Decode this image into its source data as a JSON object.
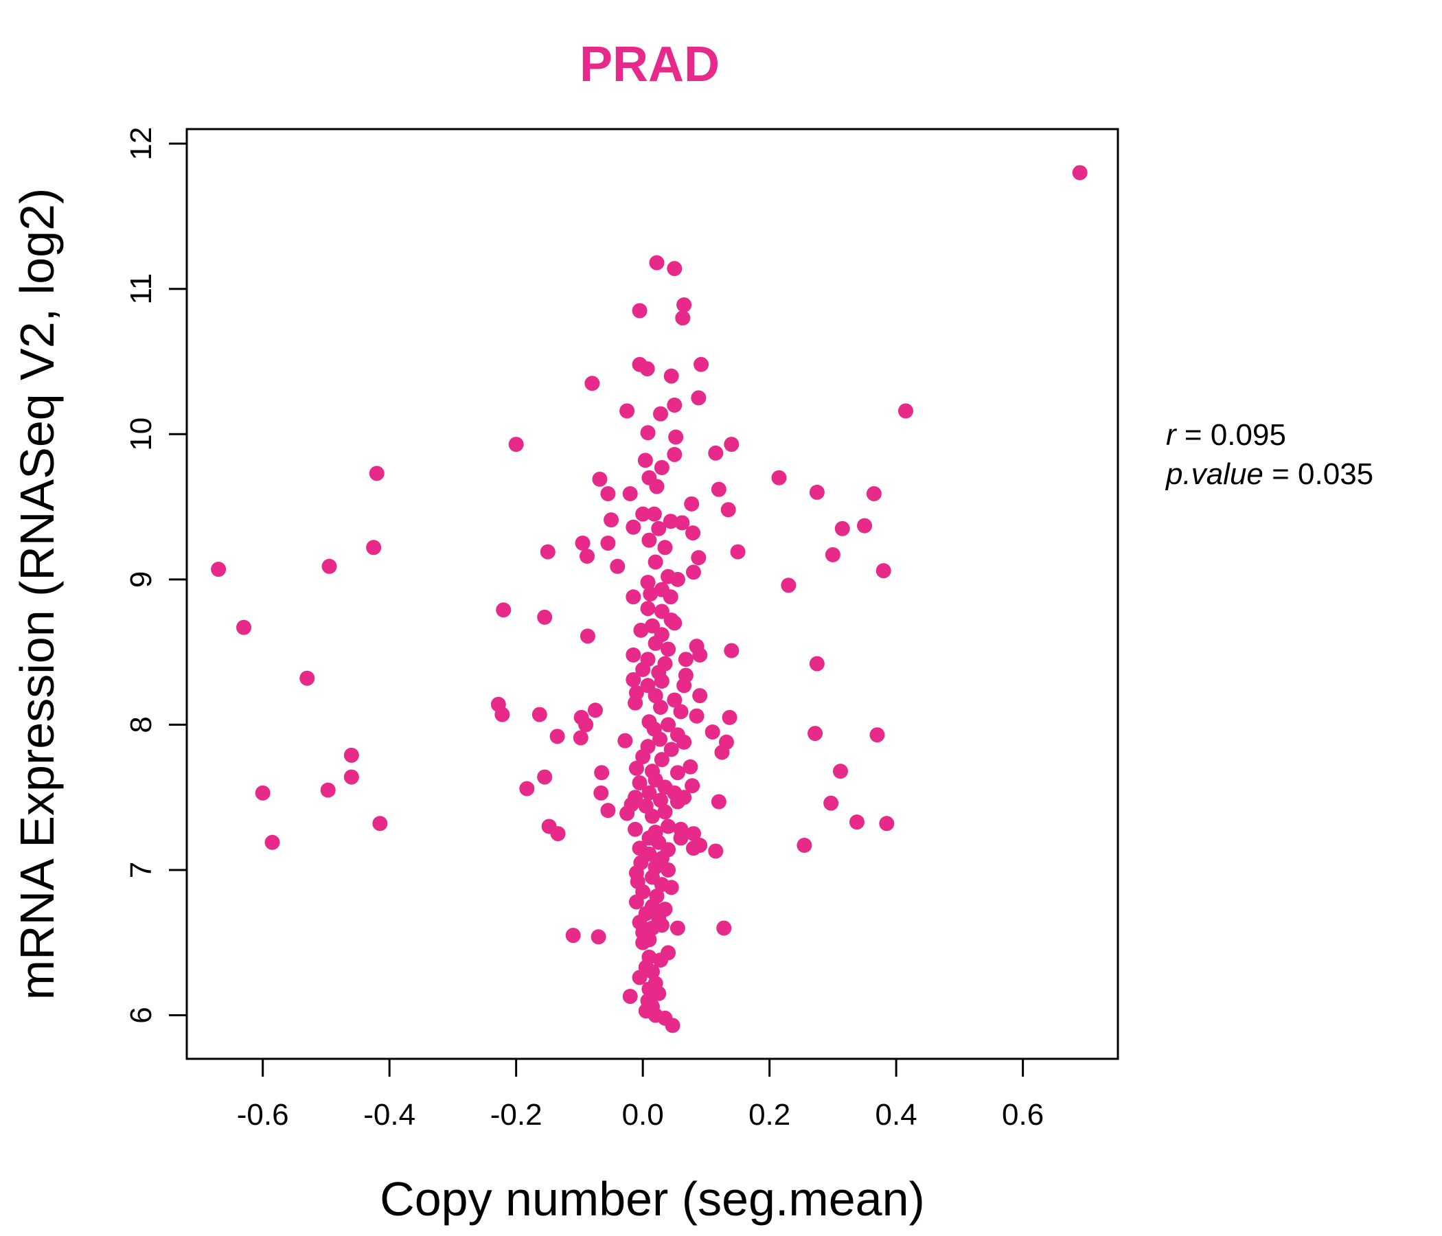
{
  "chart_data": {
    "type": "scatter",
    "title": "PRAD",
    "xlabel": "Copy number (seg.mean)",
    "ylabel": "mRNA Expression (RNASeq V2, log2)",
    "xlim": [
      -0.72,
      0.75
    ],
    "ylim": [
      5.7,
      12.1
    ],
    "x_ticks": [
      -0.6,
      -0.4,
      -0.2,
      0.0,
      0.2,
      0.4,
      0.6
    ],
    "x_tick_labels": [
      "-0.6",
      "-0.4",
      "-0.2",
      "0.0",
      "0.2",
      "0.4",
      "0.6"
    ],
    "y_ticks": [
      6,
      7,
      8,
      9,
      10,
      11,
      12
    ],
    "y_tick_labels": [
      "6",
      "7",
      "8",
      "9",
      "10",
      "11",
      "12"
    ],
    "grid": false,
    "legend": "none",
    "stats": {
      "r_label": "r",
      "r_value": "0.095",
      "p_label": "p.value",
      "p_value": "0.035"
    },
    "colors": {
      "point": "#e7298a",
      "title": "#e7298a",
      "axis": "#000000"
    },
    "points": [
      [
        0.69,
        11.8
      ],
      [
        0.022,
        11.18
      ],
      [
        0.05,
        11.14
      ],
      [
        -0.005,
        10.85
      ],
      [
        0.065,
        10.89
      ],
      [
        0.063,
        10.8
      ],
      [
        -0.005,
        10.48
      ],
      [
        0.007,
        10.45
      ],
      [
        0.092,
        10.48
      ],
      [
        -0.08,
        10.35
      ],
      [
        0.045,
        10.4
      ],
      [
        -0.025,
        10.16
      ],
      [
        0.028,
        10.14
      ],
      [
        0.05,
        10.2
      ],
      [
        0.088,
        10.25
      ],
      [
        0.415,
        10.16
      ],
      [
        0.008,
        10.01
      ],
      [
        0.052,
        9.98
      ],
      [
        -0.2,
        9.93
      ],
      [
        0.14,
        9.93
      ],
      [
        0.115,
        9.87
      ],
      [
        0.05,
        9.86
      ],
      [
        0.004,
        9.82
      ],
      [
        0.03,
        9.77
      ],
      [
        -0.42,
        9.73
      ],
      [
        0.215,
        9.7
      ],
      [
        -0.068,
        9.69
      ],
      [
        0.01,
        9.7
      ],
      [
        0.022,
        9.64
      ],
      [
        0.12,
        9.62
      ],
      [
        -0.055,
        9.59
      ],
      [
        -0.02,
        9.59
      ],
      [
        0.275,
        9.6
      ],
      [
        0.365,
        9.59
      ],
      [
        0.077,
        9.52
      ],
      [
        0.135,
        9.48
      ],
      [
        0.0,
        9.45
      ],
      [
        0.018,
        9.45
      ],
      [
        -0.05,
        9.41
      ],
      [
        0.044,
        9.4
      ],
      [
        0.062,
        9.39
      ],
      [
        -0.015,
        9.36
      ],
      [
        0.025,
        9.35
      ],
      [
        0.315,
        9.35
      ],
      [
        0.35,
        9.37
      ],
      [
        0.079,
        9.32
      ],
      [
        -0.095,
        9.25
      ],
      [
        -0.055,
        9.25
      ],
      [
        0.01,
        9.27
      ],
      [
        0.035,
        9.22
      ],
      [
        -0.425,
        9.22
      ],
      [
        -0.15,
        9.19
      ],
      [
        0.15,
        9.19
      ],
      [
        0.3,
        9.17
      ],
      [
        -0.088,
        9.16
      ],
      [
        0.088,
        9.15
      ],
      [
        0.02,
        9.12
      ],
      [
        -0.495,
        9.09
      ],
      [
        -0.04,
        9.09
      ],
      [
        -0.67,
        9.07
      ],
      [
        0.38,
        9.06
      ],
      [
        0.08,
        9.05
      ],
      [
        0.04,
        9.02
      ],
      [
        0.055,
        9.0
      ],
      [
        0.008,
        8.98
      ],
      [
        0.23,
        8.96
      ],
      [
        0.03,
        8.93
      ],
      [
        -0.015,
        8.88
      ],
      [
        0.012,
        8.9
      ],
      [
        0.044,
        8.88
      ],
      [
        -0.22,
        8.79
      ],
      [
        0.008,
        8.8
      ],
      [
        0.03,
        8.78
      ],
      [
        -0.155,
        8.74
      ],
      [
        0.045,
        8.72
      ],
      [
        -0.63,
        8.67
      ],
      [
        0.015,
        8.68
      ],
      [
        0.05,
        8.7
      ],
      [
        -0.003,
        8.65
      ],
      [
        -0.087,
        8.61
      ],
      [
        0.03,
        8.62
      ],
      [
        0.02,
        8.56
      ],
      [
        0.085,
        8.54
      ],
      [
        0.04,
        8.52
      ],
      [
        0.14,
        8.51
      ],
      [
        -0.015,
        8.48
      ],
      [
        0.09,
        8.48
      ],
      [
        0.008,
        8.45
      ],
      [
        0.068,
        8.45
      ],
      [
        0.035,
        8.42
      ],
      [
        0.275,
        8.42
      ],
      [
        0.0,
        8.38
      ],
      [
        0.025,
        8.36
      ],
      [
        -0.015,
        8.31
      ],
      [
        0.068,
        8.34
      ],
      [
        -0.53,
        8.32
      ],
      [
        0.03,
        8.3
      ],
      [
        0.008,
        8.27
      ],
      [
        0.065,
        8.27
      ],
      [
        -0.01,
        8.22
      ],
      [
        0.02,
        8.2
      ],
      [
        0.09,
        8.2
      ],
      [
        -0.228,
        8.14
      ],
      [
        0.05,
        8.17
      ],
      [
        -0.012,
        8.15
      ],
      [
        0.028,
        8.12
      ],
      [
        -0.075,
        8.1
      ],
      [
        0.06,
        8.09
      ],
      [
        -0.222,
        8.07
      ],
      [
        -0.163,
        8.07
      ],
      [
        0.085,
        8.06
      ],
      [
        -0.097,
        8.05
      ],
      [
        0.137,
        8.05
      ],
      [
        0.01,
        8.02
      ],
      [
        0.04,
        8.0
      ],
      [
        -0.09,
        8.0
      ],
      [
        0.018,
        7.97
      ],
      [
        0.11,
        7.95
      ],
      [
        0.055,
        7.93
      ],
      [
        0.272,
        7.94
      ],
      [
        0.37,
        7.93
      ],
      [
        -0.135,
        7.92
      ],
      [
        -0.098,
        7.91
      ],
      [
        0.027,
        7.9
      ],
      [
        -0.028,
        7.89
      ],
      [
        0.065,
        7.88
      ],
      [
        0.132,
        7.88
      ],
      [
        0.008,
        7.85
      ],
      [
        0.045,
        7.83
      ],
      [
        0.125,
        7.81
      ],
      [
        -0.46,
        7.79
      ],
      [
        0.0,
        7.78
      ],
      [
        0.03,
        7.76
      ],
      [
        0.075,
        7.71
      ],
      [
        -0.01,
        7.7
      ],
      [
        0.015,
        7.68
      ],
      [
        0.312,
        7.68
      ],
      [
        -0.065,
        7.67
      ],
      [
        0.055,
        7.67
      ],
      [
        -0.155,
        7.64
      ],
      [
        -0.46,
        7.64
      ],
      [
        0.02,
        7.62
      ],
      [
        -0.005,
        7.6
      ],
      [
        0.078,
        7.58
      ],
      [
        0.035,
        7.57
      ],
      [
        -0.183,
        7.56
      ],
      [
        -0.497,
        7.55
      ],
      [
        0.01,
        7.53
      ],
      [
        0.05,
        7.53
      ],
      [
        -0.066,
        7.53
      ],
      [
        -0.6,
        7.53
      ],
      [
        -0.012,
        7.5
      ],
      [
        0.065,
        7.5
      ],
      [
        0.028,
        7.48
      ],
      [
        0.12,
        7.47
      ],
      [
        0.055,
        7.47
      ],
      [
        -0.018,
        7.45
      ],
      [
        0.297,
        7.46
      ],
      [
        0.005,
        7.44
      ],
      [
        -0.055,
        7.41
      ],
      [
        0.035,
        7.4
      ],
      [
        -0.025,
        7.39
      ],
      [
        0.015,
        7.37
      ],
      [
        0.338,
        7.33
      ],
      [
        0.385,
        7.32
      ],
      [
        -0.415,
        7.32
      ],
      [
        -0.148,
        7.3
      ],
      [
        0.04,
        7.3
      ],
      [
        0.06,
        7.28
      ],
      [
        -0.012,
        7.28
      ],
      [
        0.02,
        7.26
      ],
      [
        -0.134,
        7.25
      ],
      [
        0.08,
        7.25
      ],
      [
        0.01,
        7.22
      ],
      [
        0.06,
        7.22
      ],
      [
        -0.585,
        7.19
      ],
      [
        0.025,
        7.19
      ],
      [
        0.255,
        7.17
      ],
      [
        0.09,
        7.17
      ],
      [
        -0.005,
        7.15
      ],
      [
        0.08,
        7.15
      ],
      [
        0.04,
        7.14
      ],
      [
        0.115,
        7.13
      ],
      [
        0.01,
        7.11
      ],
      [
        0.03,
        7.08
      ],
      [
        -0.003,
        7.05
      ],
      [
        0.02,
        7.02
      ],
      [
        0.04,
        7.0
      ],
      [
        -0.01,
        6.98
      ],
      [
        0.015,
        6.95
      ],
      [
        -0.008,
        6.92
      ],
      [
        0.03,
        6.9
      ],
      [
        0.045,
        6.88
      ],
      [
        0.0,
        6.85
      ],
      [
        0.022,
        6.82
      ],
      [
        -0.01,
        6.78
      ],
      [
        0.015,
        6.75
      ],
      [
        0.035,
        6.73
      ],
      [
        0.005,
        6.7
      ],
      [
        0.025,
        6.67
      ],
      [
        -0.005,
        6.64
      ],
      [
        0.03,
        6.62
      ],
      [
        0.015,
        6.6
      ],
      [
        0.055,
        6.6
      ],
      [
        0.128,
        6.6
      ],
      [
        0.0,
        6.57
      ],
      [
        -0.11,
        6.55
      ],
      [
        -0.07,
        6.54
      ],
      [
        0.01,
        6.52
      ],
      [
        0.0,
        6.5
      ],
      [
        0.04,
        6.43
      ],
      [
        0.01,
        6.4
      ],
      [
        0.028,
        6.38
      ],
      [
        0.005,
        6.33
      ],
      [
        0.015,
        6.3
      ],
      [
        -0.005,
        6.26
      ],
      [
        0.02,
        6.22
      ],
      [
        0.01,
        6.18
      ],
      [
        0.025,
        6.15
      ],
      [
        -0.02,
        6.13
      ],
      [
        0.008,
        6.1
      ],
      [
        0.015,
        6.06
      ],
      [
        0.005,
        6.03
      ],
      [
        0.02,
        6.0
      ],
      [
        0.035,
        5.98
      ],
      [
        0.047,
        5.93
      ]
    ]
  }
}
